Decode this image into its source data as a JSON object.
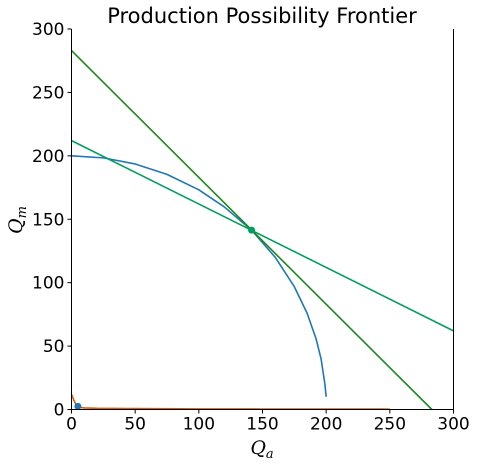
{
  "chart_data": {
    "type": "line",
    "title": "Production Possibility Frontier",
    "xlabel": "Q",
    "xlabel_sub": "a",
    "ylabel": "Q",
    "ylabel_sub": "m",
    "xlim": [
      0,
      300
    ],
    "ylim": [
      0,
      300
    ],
    "xticks": [
      0,
      50,
      100,
      150,
      200,
      250,
      300
    ],
    "yticks": [
      0,
      50,
      100,
      150,
      200,
      250,
      300
    ],
    "grid": false,
    "legend": "none",
    "series": [
      {
        "kind": "curve",
        "color": "#1f77b4",
        "x": [
          0,
          25,
          50,
          75,
          100,
          120,
          141.4,
          160,
          175,
          185,
          192,
          196,
          199,
          200
        ],
        "y": [
          200,
          198.4,
          193.6,
          185.4,
          173.2,
          159.7,
          141.4,
          120,
          96.8,
          76,
          56,
          40,
          20,
          10
        ]
      },
      {
        "kind": "line",
        "color": "#009e60",
        "x": [
          0,
          300
        ],
        "y": [
          212,
          62
        ]
      },
      {
        "kind": "line",
        "color": "#1a8a1a",
        "x": [
          0,
          283
        ],
        "y": [
          283,
          0
        ]
      },
      {
        "kind": "curve",
        "color": "#d55e00",
        "x": [
          0,
          2,
          4,
          6,
          10,
          20,
          50,
          100,
          150,
          200,
          250
        ],
        "y": [
          12,
          7,
          3,
          1.8,
          1.2,
          0.9,
          0.7,
          0.5,
          0.4,
          0.35,
          0.3
        ]
      }
    ],
    "points": [
      {
        "x": 141.4,
        "y": 141.4,
        "color": "#009e60"
      },
      {
        "x": 5,
        "y": 2.5,
        "color": "#1f77b4"
      }
    ]
  }
}
